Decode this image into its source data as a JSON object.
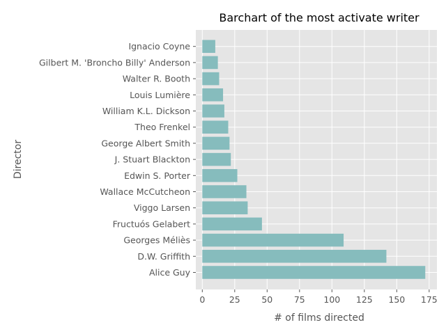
{
  "chart_data": {
    "type": "bar",
    "orientation": "horizontal",
    "title": "Barchart of the most activate writer",
    "xlabel": "# of films directed",
    "ylabel": "Director",
    "xlim": [
      0,
      180
    ],
    "xticks": [
      0,
      25,
      50,
      75,
      100,
      125,
      150,
      175
    ],
    "grid": true,
    "background": "#e5e5e5",
    "bar_color": "#86bcbd",
    "categories": [
      "Alice Guy",
      "D.W. Griffith",
      "Georges Méliès",
      "Fructuós Gelabert",
      "Viggo Larsen",
      "Wallace McCutcheon",
      "Edwin S. Porter",
      "J. Stuart Blackton",
      "George Albert Smith",
      "Theo Frenkel",
      "William K.L. Dickson",
      "Louis Lumière",
      "Walter R. Booth",
      "Gilbert M. 'Broncho Billy' Anderson",
      "Ignacio Coyne"
    ],
    "values": [
      172,
      142,
      109,
      46,
      35,
      34,
      27,
      22,
      21,
      20,
      17,
      16,
      13,
      12,
      10
    ]
  }
}
